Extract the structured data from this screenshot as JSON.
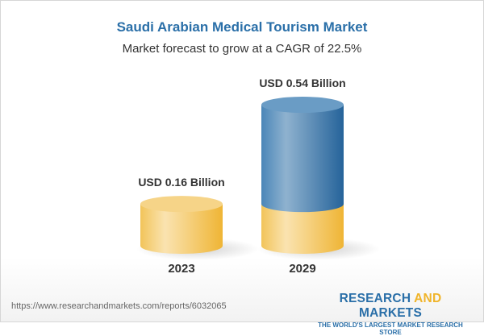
{
  "title": "Saudi Arabian Medical Tourism Market",
  "subtitle": "Market forecast to grow at a CAGR of 22.5%",
  "url": "https://www.researchandmarkets.com/reports/6032065",
  "logo": {
    "part1": "RESEARCH ",
    "part2": "AND",
    "part3": " MARKETS",
    "tagline": "THE WORLD'S LARGEST MARKET RESEARCH STORE"
  },
  "colors": {
    "base": "#f0c050",
    "growth": "#3f7fb3",
    "title": "#2a6fa8"
  },
  "chart_data": {
    "type": "bar",
    "style": "3d-cylinder",
    "title": "Saudi Arabian Medical Tourism Market",
    "subtitle": "Market forecast to grow at a CAGR of 22.5%",
    "categories": [
      "2023",
      "2029"
    ],
    "values": [
      0.16,
      0.54
    ],
    "data_labels": [
      "USD 0.16 Billion",
      "USD 0.54 Billion"
    ],
    "unit": "USD Billion",
    "grid": false
  }
}
